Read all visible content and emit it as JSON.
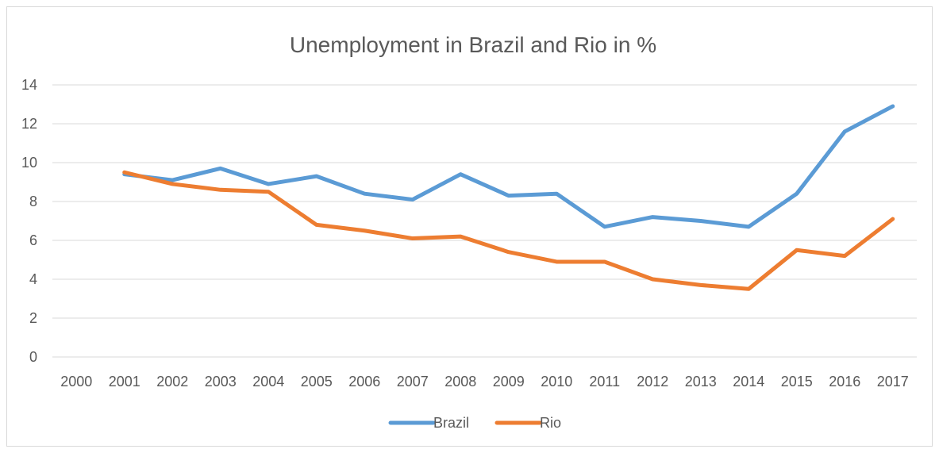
{
  "chart_data": {
    "type": "line",
    "title": "Unemployment in Brazil and Rio in %",
    "xlabel": "",
    "ylabel": "",
    "categories": [
      "2000",
      "2001",
      "2002",
      "2003",
      "2004",
      "2005",
      "2006",
      "2007",
      "2008",
      "2009",
      "2010",
      "2011",
      "2012",
      "2013",
      "2014",
      "2015",
      "2016",
      "2017"
    ],
    "y_ticks": [
      "0",
      "2",
      "4",
      "6",
      "8",
      "10",
      "12",
      "14"
    ],
    "ylim": [
      0,
      14
    ],
    "grid": true,
    "legend_position": "bottom",
    "series": [
      {
        "name": "Brazil",
        "color": "#5b9bd5",
        "values": [
          null,
          9.4,
          9.1,
          9.7,
          8.9,
          9.3,
          8.4,
          8.1,
          9.4,
          8.3,
          8.4,
          6.7,
          7.2,
          7.0,
          6.7,
          8.4,
          11.6,
          12.9
        ]
      },
      {
        "name": "Rio",
        "color": "#ed7d31",
        "values": [
          null,
          9.5,
          8.9,
          8.6,
          8.5,
          6.8,
          6.5,
          6.1,
          6.2,
          5.4,
          4.9,
          4.9,
          4.0,
          3.7,
          3.5,
          5.5,
          5.2,
          7.1
        ]
      }
    ]
  }
}
